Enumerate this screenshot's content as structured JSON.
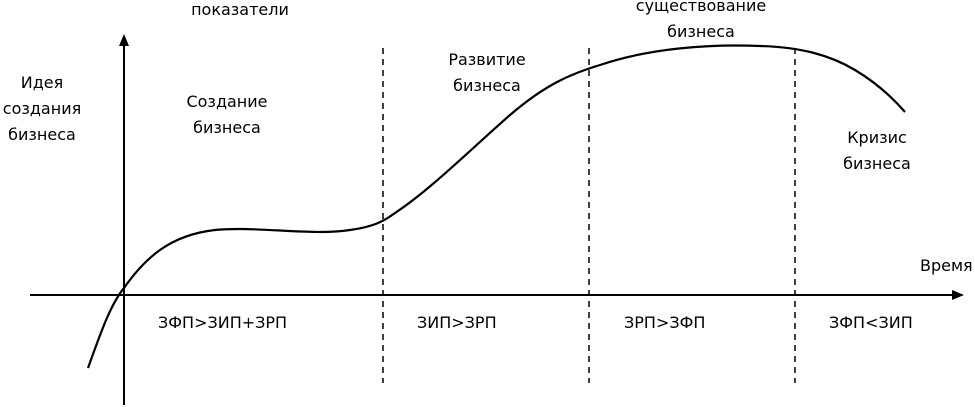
{
  "labels": {
    "y_axis": "показатели",
    "x_axis": "Время",
    "idea": [
      "Идея",
      "создания",
      "бизнеса"
    ],
    "creation": [
      "Создание",
      "бизнеса"
    ],
    "development": [
      "Развитие",
      "бизнеса"
    ],
    "existence": [
      "существование",
      "бизнеса"
    ],
    "crisis": [
      "Кризис",
      "бизнеса"
    ]
  },
  "formulas": [
    "ЗФП>ЗИП+ЗРП",
    "ЗИП>ЗРП",
    "ЗРП>ЗФП",
    "ЗФП<ЗИП"
  ]
}
